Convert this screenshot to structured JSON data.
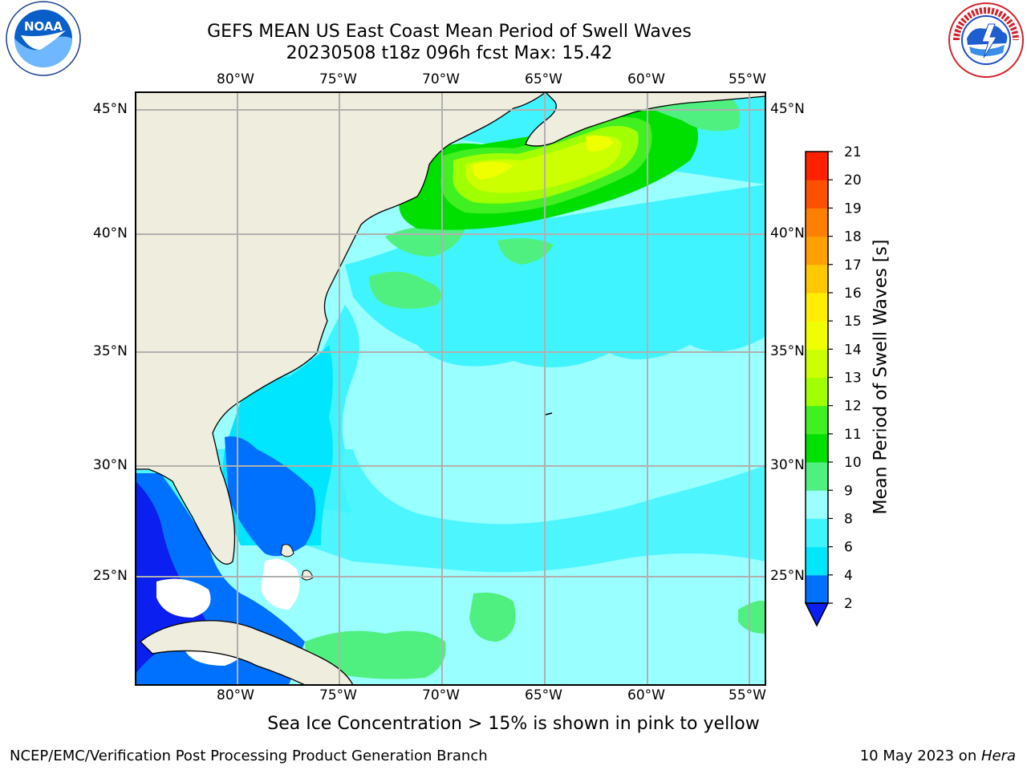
{
  "header": {
    "title_line1": "GEFS MEAN US East Coast Mean Period of Swell Waves",
    "title_line2": "20230508 t18z 096h fcst   Max: 15.42"
  },
  "logos": {
    "left": {
      "icon": "noaa-logo-icon",
      "text": "NOAA",
      "ring_text": "NATIONAL OCEANIC AND ATMOSPHERIC ADMINISTRATION · U.S. DEPARTMENT OF COMMERCE"
    },
    "right": {
      "icon": "nws-logo-icon",
      "ring_text": "NATIONAL WEATHER SERVICE"
    }
  },
  "map": {
    "projection": "lat-lon",
    "lon_range": [
      -85,
      -54.1
    ],
    "lat_range": [
      20.3,
      45.8
    ],
    "top_lon_labels": [
      "80°W",
      "75°W",
      "70°W",
      "65°W",
      "60°W",
      "55°W"
    ],
    "bottom_lon_labels": [
      "80°W",
      "75°W",
      "70°W",
      "65°W",
      "60°W",
      "55°W"
    ],
    "left_lat_labels": [
      "45°N",
      "40°N",
      "35°N",
      "30°N",
      "25°N"
    ],
    "right_lat_labels": [
      "45°N",
      "40°N",
      "35°N",
      "30°N",
      "25°N"
    ],
    "colors": {
      "land": "#efedde",
      "grid": "#b0b0b0",
      "coast": "#000000"
    }
  },
  "colorbar": {
    "label": "Mean Period of Swell Waves [s]",
    "tick_labels": [
      "2",
      "4",
      "6",
      "8",
      "9",
      "10",
      "11",
      "12",
      "13",
      "14",
      "15",
      "16",
      "17",
      "18",
      "19",
      "20",
      "21"
    ],
    "colors": [
      "#0070ff",
      "#00e6ff",
      "#40f4ff",
      "#99ffff",
      "#50f080",
      "#00e000",
      "#40f020",
      "#a0ff00",
      "#ccff00",
      "#f0ff00",
      "#ffee00",
      "#ffc800",
      "#ffa000",
      "#ff8000",
      "#ff5000",
      "#ff2000"
    ],
    "under_color": "#0a1ff0"
  },
  "note": "Sea Ice Concentration > 15% is shown in pink to yellow",
  "footer": {
    "left": "NCEP/EMC/Verification Post Processing Product Generation Branch",
    "date": "10 May 2023 on ",
    "host": "Hera"
  }
}
